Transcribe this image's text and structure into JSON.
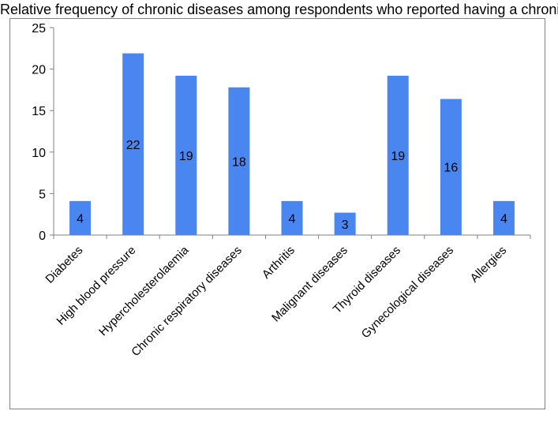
{
  "chart_data": {
    "type": "bar",
    "title": "Relative frequency of chronic diseases among respondents who reported having a chronic disease",
    "xlabel": "",
    "ylabel": "",
    "categories": [
      "Diabetes",
      "High blood pressure",
      "Hypercholesterolaemia",
      "Chronic respiratory diseases",
      "Arthritis",
      "Malignant diseases",
      "Thyroid diseases",
      "Gynecological diseases",
      "Allergies"
    ],
    "values": [
      4.1,
      21.9,
      19.2,
      17.8,
      4.1,
      2.7,
      19.2,
      16.4,
      4.1
    ],
    "data_labels": [
      "4",
      "22",
      "19",
      "18",
      "4",
      "3",
      "19",
      "16",
      "4"
    ],
    "ylim": [
      0,
      25
    ],
    "yticks": [
      0,
      5,
      10,
      15,
      20,
      25
    ],
    "grid": false,
    "legend": "none",
    "bar_color": "#4a86f0"
  }
}
